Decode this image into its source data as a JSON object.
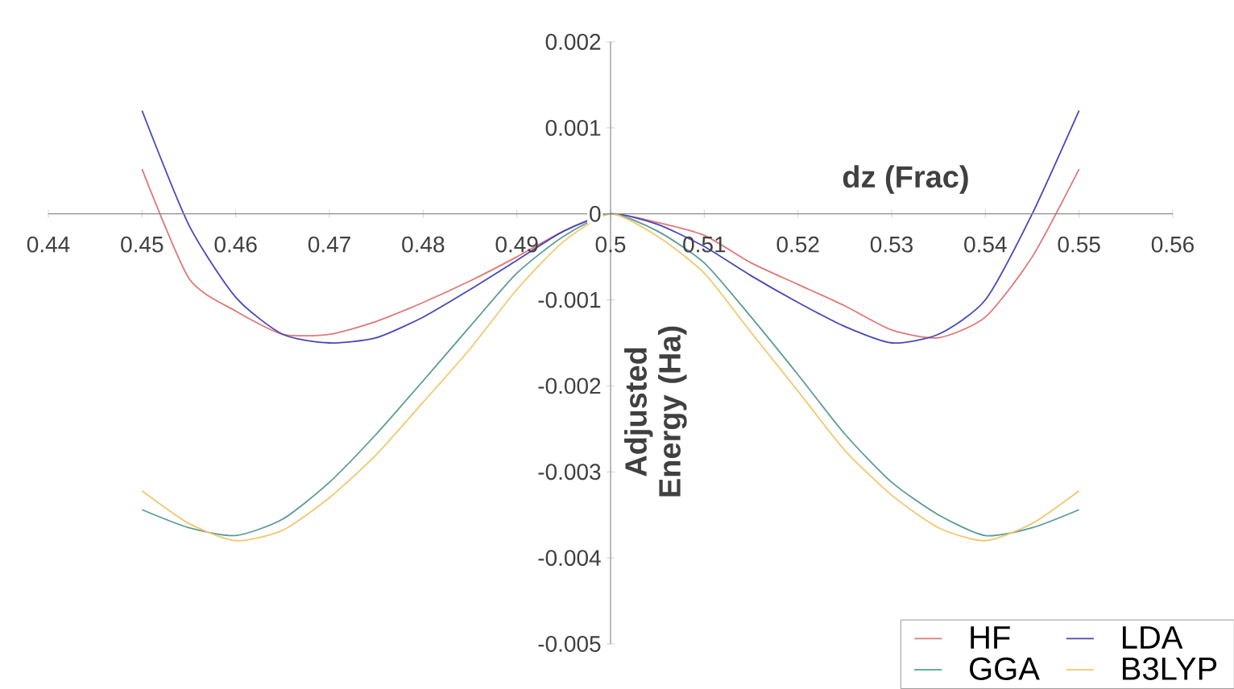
{
  "chart_data": {
    "type": "line",
    "xlabel": "dz (Frac)",
    "ylabel": "Adjusted Energy (Ha)",
    "x": [
      0.45,
      0.455,
      0.46,
      0.465,
      0.47,
      0.475,
      0.48,
      0.485,
      0.49,
      0.495,
      0.5,
      0.505,
      0.51,
      0.515,
      0.52,
      0.525,
      0.53,
      0.535,
      0.54,
      0.545,
      0.55
    ],
    "series": [
      {
        "name": "HF",
        "color": "#e07878",
        "values": [
          0.00052,
          -0.00075,
          -0.00113,
          -0.0014,
          -0.0014,
          -0.00125,
          -0.00103,
          -0.00078,
          -0.0005,
          -0.0002,
          0,
          -0.0001,
          -0.00025,
          -0.00057,
          -0.00082,
          -0.00107,
          -0.00135,
          -0.00144,
          -0.0012,
          -0.0005,
          0.00052
        ]
      },
      {
        "name": "LDA",
        "color": "#4848b8",
        "values": [
          0.0012,
          -0.00013,
          -0.00097,
          -0.0014,
          -0.0015,
          -0.00144,
          -0.0012,
          -0.00088,
          -0.00054,
          -0.0002,
          0,
          -0.00012,
          -0.00038,
          -0.00072,
          -0.00103,
          -0.00131,
          -0.0015,
          -0.0014,
          -0.001,
          0,
          0.0012
        ]
      },
      {
        "name": "GGA",
        "color": "#5a9c96",
        "values": [
          -0.00344,
          -0.00365,
          -0.00374,
          -0.00355,
          -0.00312,
          -0.00256,
          -0.00194,
          -0.00131,
          -0.00069,
          -0.00026,
          0,
          -0.0002,
          -0.00057,
          -0.0012,
          -0.00187,
          -0.00256,
          -0.00312,
          -0.0035,
          -0.00374,
          -0.00365,
          -0.00344
        ]
      },
      {
        "name": "B3LYP",
        "color": "#f0c870",
        "values": [
          -0.00322,
          -0.0036,
          -0.0038,
          -0.00368,
          -0.0033,
          -0.0028,
          -0.00219,
          -0.00157,
          -0.00088,
          -0.00032,
          0,
          -0.00026,
          -0.00069,
          -0.00138,
          -0.00206,
          -0.00275,
          -0.00327,
          -0.00365,
          -0.0038,
          -0.0036,
          -0.00322
        ]
      }
    ],
    "xlim": [
      0.44,
      0.56
    ],
    "xticks": [
      0.44,
      0.45,
      0.46,
      0.47,
      0.48,
      0.49,
      0.5,
      0.51,
      0.52,
      0.53,
      0.54,
      0.55,
      0.56
    ],
    "ylim": [
      -0.005,
      0.002
    ],
    "yticks": [
      0.002,
      0.001,
      0,
      -0.001,
      -0.002,
      -0.003,
      -0.004,
      -0.005
    ],
    "legend": "bottom right",
    "grid": false,
    "marker": "none",
    "line_style": "solid"
  }
}
